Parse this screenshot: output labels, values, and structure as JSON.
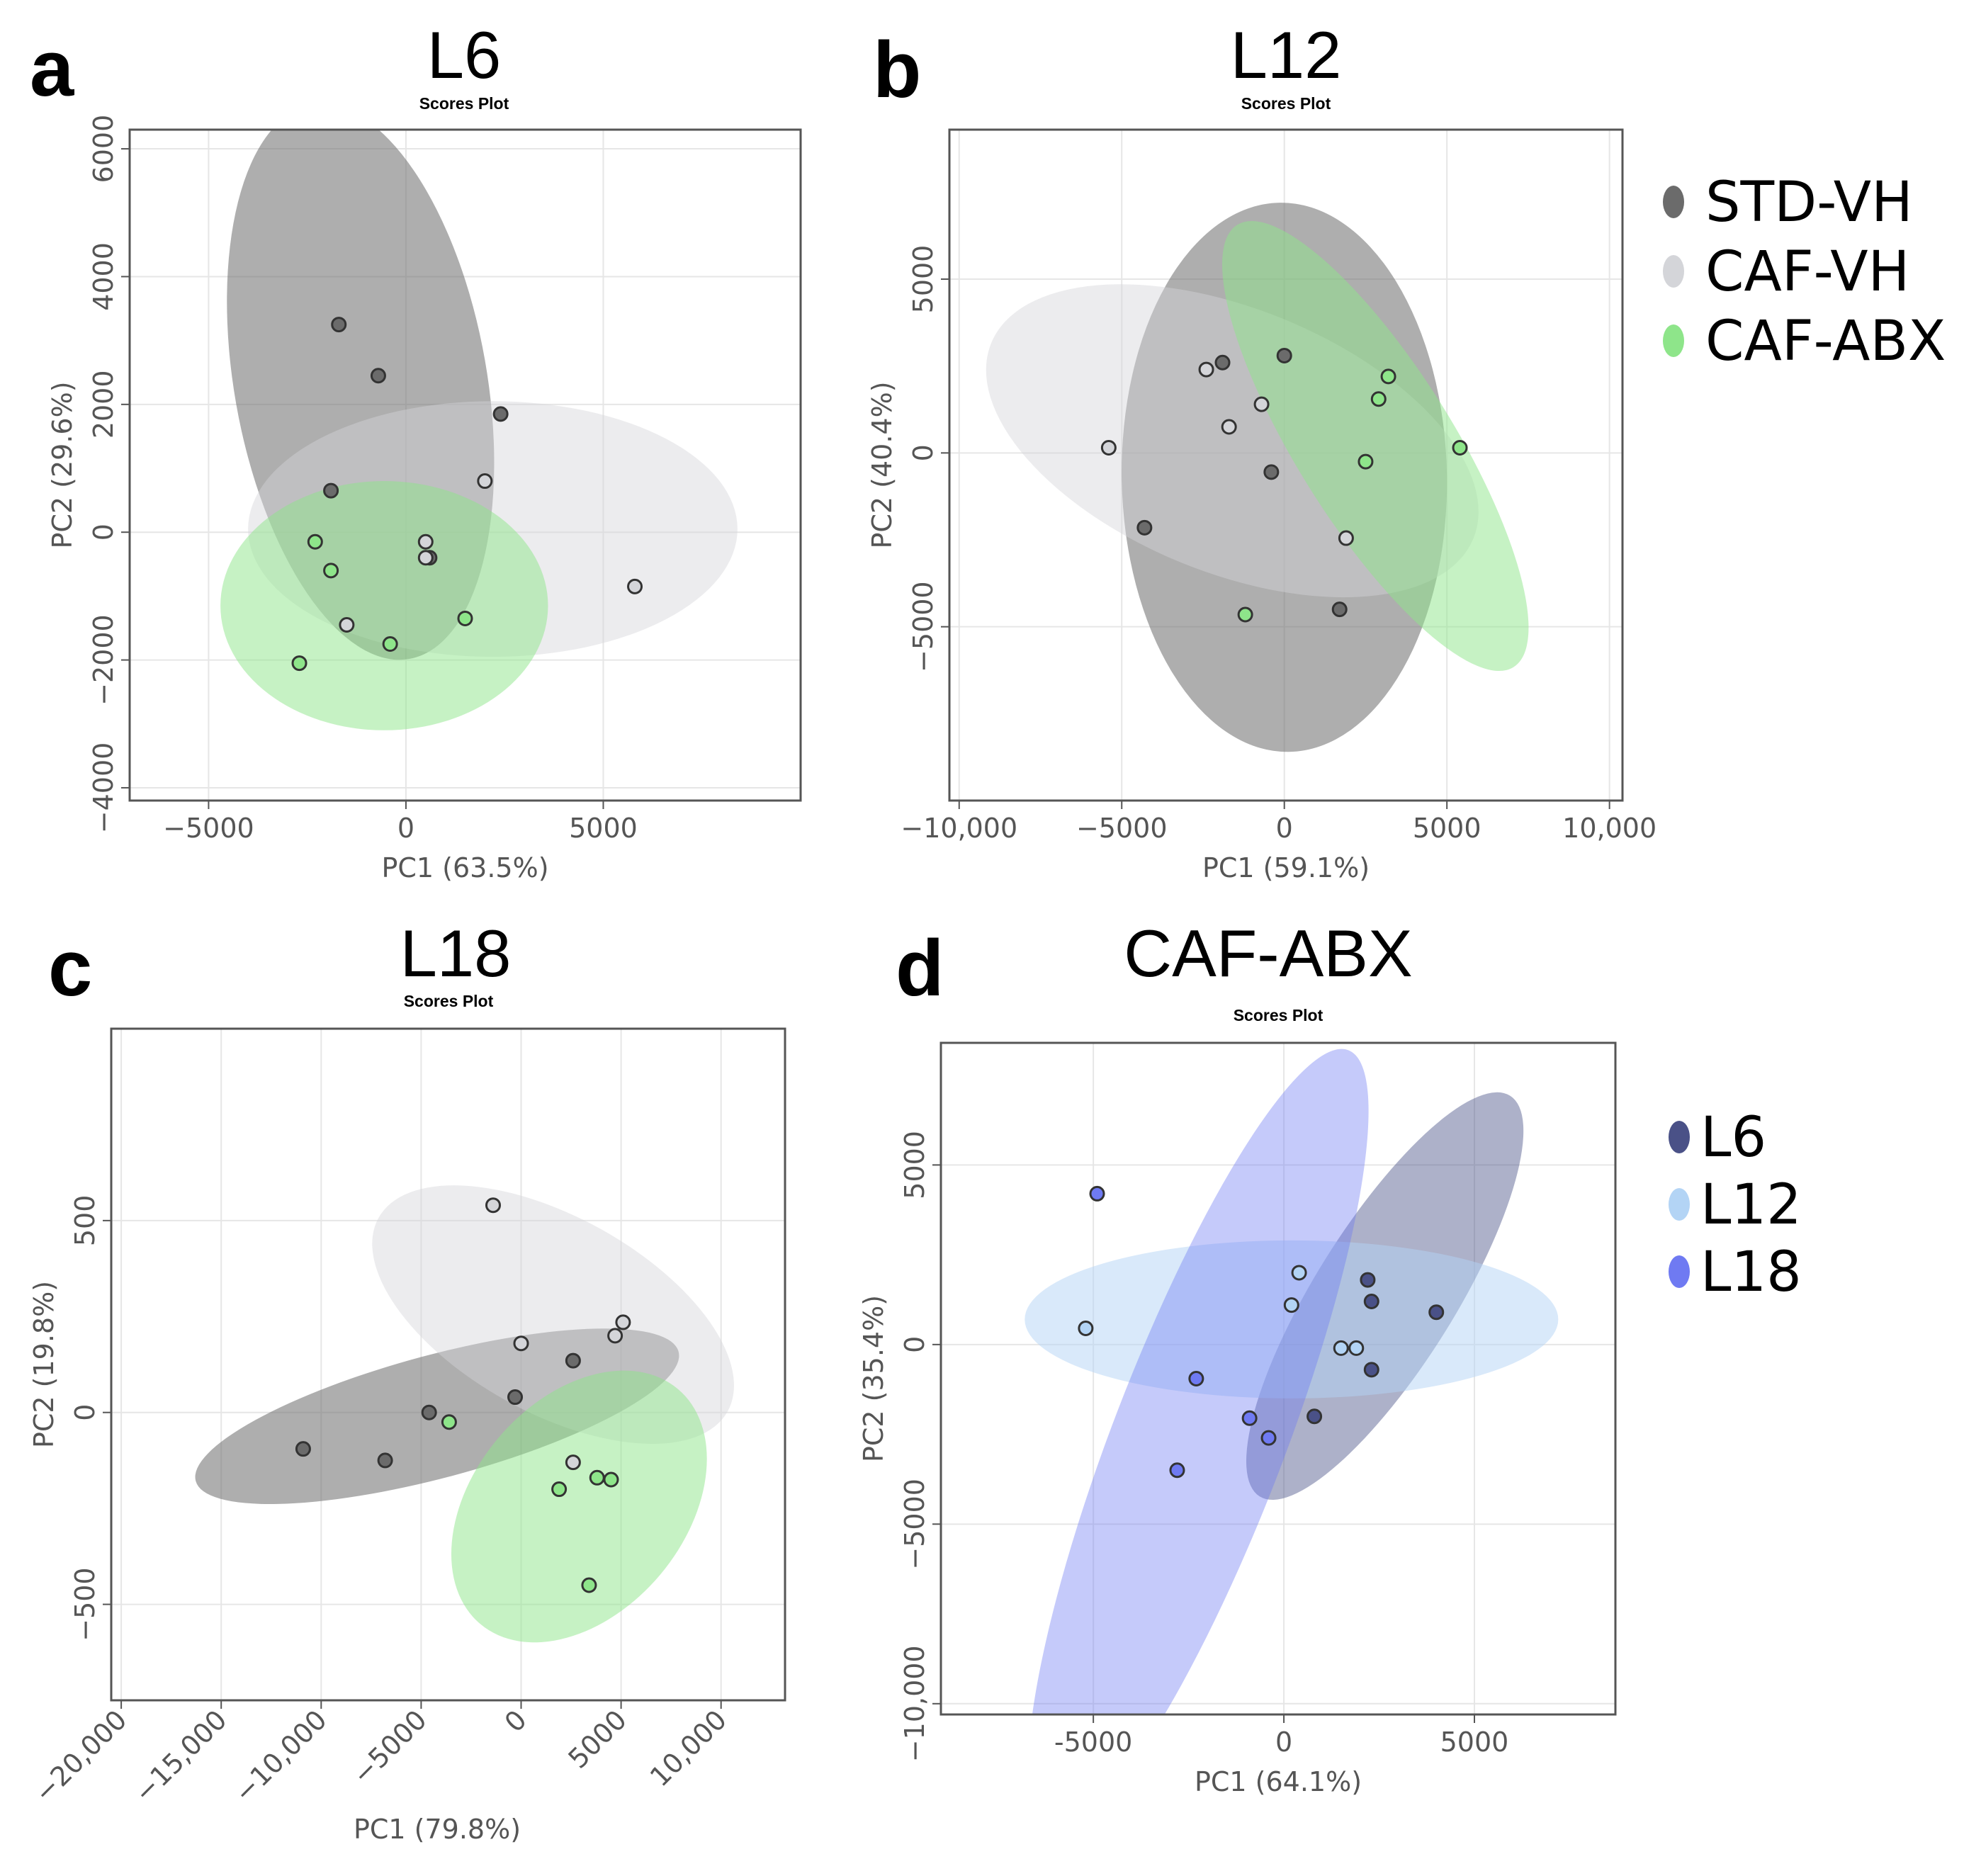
{
  "chart_data": [
    {
      "id": "a",
      "type": "scatter",
      "letter": "a",
      "title": "L6",
      "subtitle": "Scores Plot",
      "xlabel": "PC1 (63.5%)",
      "ylabel": "PC2 (29.6%)",
      "xlim": [
        -7000,
        10000
      ],
      "ylim": [
        -4200,
        6300
      ],
      "xticks": [
        -5000,
        0,
        5000
      ],
      "xtick_labels": [
        "−5000",
        "0",
        "5000"
      ],
      "yticks": [
        -4000,
        -2000,
        0,
        2000,
        4000,
        6000
      ],
      "ytick_labels": [
        "−4000",
        "−2000",
        "0",
        "2000",
        "4000",
        "6000"
      ],
      "x_tick_rotation": 0,
      "series": [
        {
          "name": "STD-VH",
          "color": "#6b6b6b",
          "ellipse": {
            "cx": -1150,
            "cy": 2350,
            "rx": 4400,
            "ry": 3200,
            "angle": 80,
            "opacity": 0.55
          },
          "points": [
            [
              -1700,
              3250
            ],
            [
              -700,
              2450
            ],
            [
              2400,
              1850
            ],
            [
              -1900,
              650
            ],
            [
              600,
              -400
            ]
          ]
        },
        {
          "name": "CAF-VH",
          "color": "#d4d5d9",
          "ellipse": {
            "cx": 2200,
            "cy": 50,
            "rx": 6200,
            "ry": 2000,
            "angle": 0,
            "opacity": 0.45
          },
          "points": [
            [
              2000,
              800
            ],
            [
              500,
              -150
            ],
            [
              5800,
              -850
            ],
            [
              -1500,
              -1450
            ],
            [
              500,
              -400
            ]
          ]
        },
        {
          "name": "CAF-ABX",
          "color": "#8ee58a",
          "ellipse": {
            "cx": -550,
            "cy": -1150,
            "rx": 4150,
            "ry": 1950,
            "angle": 0,
            "opacity": 0.5
          },
          "points": [
            [
              -2300,
              -150
            ],
            [
              -1900,
              -600
            ],
            [
              1500,
              -1350
            ],
            [
              -400,
              -1750
            ],
            [
              -2700,
              -2050
            ]
          ]
        }
      ]
    },
    {
      "id": "b",
      "type": "scatter",
      "letter": "b",
      "title": "L12",
      "subtitle": "Scores Plot",
      "xlabel": "PC1 (59.1%)",
      "ylabel": "PC2 (40.4%)",
      "xlim": [
        -10300,
        10400
      ],
      "ylim": [
        -10000,
        9300
      ],
      "xticks": [
        -10000,
        -5000,
        0,
        5000,
        10000
      ],
      "xtick_labels": [
        "−10,000",
        "−5000",
        "0",
        "5000",
        "10,000"
      ],
      "yticks": [
        -5000,
        0,
        5000
      ],
      "ytick_labels": [
        "−5000",
        "0",
        "5000"
      ],
      "x_tick_rotation": 0,
      "series": [
        {
          "name": "STD-VH",
          "color": "#6b6b6b",
          "ellipse": {
            "cx": 0,
            "cy": -700,
            "rx": 7900,
            "ry": 5000,
            "angle": 89,
            "opacity": 0.55
          },
          "points": [
            [
              -1900,
              2600
            ],
            [
              0,
              2800
            ],
            [
              -400,
              -550
            ],
            [
              -4300,
              -2150
            ],
            [
              1700,
              -4500
            ]
          ]
        },
        {
          "name": "CAF-VH",
          "color": "#d4d5d9",
          "ellipse": {
            "cx": -1600,
            "cy": 350,
            "rx": 8000,
            "ry": 3800,
            "angle": -22,
            "opacity": 0.45
          },
          "points": [
            [
              -2400,
              2400
            ],
            [
              -700,
              1400
            ],
            [
              -1700,
              750
            ],
            [
              -5400,
              150
            ],
            [
              1900,
              -2450
            ]
          ]
        },
        {
          "name": "CAF-ABX",
          "color": "#8ee58a",
          "ellipse": {
            "cx": 2800,
            "cy": 200,
            "rx": 7500,
            "ry": 2400,
            "angle": 58,
            "opacity": 0.5
          },
          "points": [
            [
              3200,
              2200
            ],
            [
              2900,
              1550
            ],
            [
              2500,
              -250
            ],
            [
              5400,
              150
            ],
            [
              -1200,
              -4650
            ]
          ]
        }
      ]
    },
    {
      "id": "c",
      "type": "scatter",
      "letter": "c",
      "title": "L18",
      "subtitle": "Scores Plot",
      "xlabel": "PC1 (79.8%)",
      "ylabel": "PC2 (19.8%)",
      "xlim": [
        -20500,
        13200
      ],
      "ylim": [
        -750,
        1000
      ],
      "xticks": [
        -20000,
        -15000,
        -10000,
        -5000,
        0,
        5000,
        10000
      ],
      "xtick_labels": [
        "−20,000",
        "−15,000",
        "−10,000",
        "−5000",
        "0",
        "5000",
        "10,000"
      ],
      "yticks": [
        -500,
        0,
        500
      ],
      "ytick_labels": [
        "−500",
        "0",
        "500"
      ],
      "x_tick_rotation": -45,
      "series": [
        {
          "name": "STD-VH",
          "color": "#6b6b6b",
          "ellipse": {
            "cx": -4200,
            "cy": -10,
            "rx": 12500,
            "ry": 160,
            "angle": 0,
            "opacity": 0.55,
            "tilt_deg": -15
          },
          "points": [
            [
              -10900,
              -95
            ],
            [
              -6800,
              -125
            ],
            [
              -4600,
              0
            ],
            [
              -300,
              40
            ],
            [
              2600,
              135
            ]
          ]
        },
        {
          "name": "CAF-VH",
          "color": "#d4d5d9",
          "ellipse": {
            "cx": 1600,
            "cy": 255,
            "rx": 4900,
            "ry": 520,
            "angle": 0,
            "opacity": 0.45,
            "tilt_deg": -61
          },
          "points": [
            [
              -1400,
              540
            ],
            [
              0,
              180
            ],
            [
              4700,
              200
            ],
            [
              5100,
              235
            ],
            [
              2600,
              -130
            ]
          ]
        },
        {
          "name": "CAF-ABX",
          "color": "#8ee58a",
          "ellipse": {
            "cx": 2900,
            "cy": -245,
            "rx": 5300,
            "ry": 400,
            "angle": 0,
            "opacity": 0.5,
            "tilt_deg": 40
          },
          "points": [
            [
              -3600,
              -25
            ],
            [
              3800,
              -170
            ],
            [
              4500,
              -175
            ],
            [
              1900,
              -200
            ],
            [
              3400,
              -450
            ]
          ]
        }
      ]
    },
    {
      "id": "d",
      "type": "scatter",
      "letter": "d",
      "title": "CAF-ABX",
      "subtitle": "Scores Plot",
      "xlabel": "PC1 (64.1%)",
      "ylabel": "PC2 (35.4%)",
      "xlim": [
        -9000,
        8700
      ],
      "ylim": [
        -10300,
        8400
      ],
      "xticks": [
        -5000,
        0,
        5000
      ],
      "xtick_labels": [
        "-5000",
        "0",
        "5000"
      ],
      "yticks": [
        -10000,
        -5000,
        0,
        5000
      ],
      "ytick_labels": [
        "−10,000",
        "−5000",
        "0",
        "5000"
      ],
      "x_tick_rotation": 0,
      "series": [
        {
          "name": "L6",
          "color": "#4a5187",
          "ellipse": {
            "cx": 2650,
            "cy": 1350,
            "rx": 6200,
            "ry": 1950,
            "angle": 0,
            "opacity": 0.45,
            "tilt_deg": -58
          },
          "points": [
            [
              2200,
              1800
            ],
            [
              2300,
              1200
            ],
            [
              4000,
              900
            ],
            [
              2300,
              -700
            ],
            [
              800,
              -2000
            ]
          ]
        },
        {
          "name": "L12",
          "color": "#b3d4f5",
          "ellipse": {
            "cx": 200,
            "cy": 700,
            "rx": 7000,
            "ry": 2200,
            "angle": 0,
            "opacity": 0.5
          },
          "points": [
            [
              400,
              2000
            ],
            [
              200,
              1100
            ],
            [
              1500,
              -100
            ],
            [
              1900,
              -100
            ],
            [
              -5200,
              450
            ]
          ]
        },
        {
          "name": "L18",
          "color": "#6f7af2",
          "ellipse": {
            "cx": -2250,
            "cy": -2700,
            "rx": 11000,
            "ry": 2400,
            "angle": 0,
            "opacity": 0.4,
            "tilt_deg": -69
          },
          "points": [
            [
              -4900,
              4200
            ],
            [
              -2300,
              -950
            ],
            [
              -900,
              -2050
            ],
            [
              -400,
              -2600
            ],
            [
              -2800,
              -3500
            ]
          ]
        }
      ]
    }
  ],
  "legends": [
    {
      "items": [
        {
          "label": "STD-VH",
          "color": "#6b6b6b"
        },
        {
          "label": "CAF-VH",
          "color": "#d4d5d9"
        },
        {
          "label": "CAF-ABX",
          "color": "#8ee58a"
        }
      ]
    },
    {
      "items": [
        {
          "label": "L6",
          "color": "#4a5187"
        },
        {
          "label": "L12",
          "color": "#b3d4f5"
        },
        {
          "label": "L18",
          "color": "#6f7af2"
        }
      ]
    }
  ]
}
